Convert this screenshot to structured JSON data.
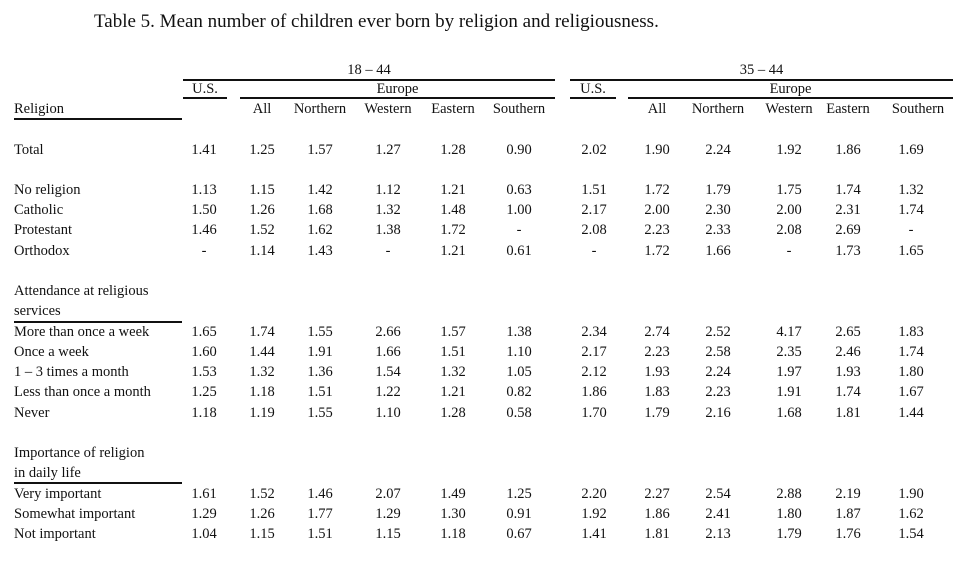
{
  "title": "Table 5. Mean number of children ever born by religion and religiousness.",
  "groups": {
    "left": {
      "age": "18 – 44",
      "us": "U.S.",
      "europe": "Europe"
    },
    "right": {
      "age": "35 – 44",
      "us": "U.S.",
      "europe": "Europe"
    }
  },
  "row_header": "Religion",
  "subheaders": [
    "All",
    "Northern",
    "Western",
    "Eastern",
    "Southern"
  ],
  "rows": [
    {
      "label": "Total",
      "values": [
        "1.41",
        "1.25",
        "1.57",
        "1.27",
        "1.28",
        "0.90",
        "2.02",
        "1.90",
        "2.24",
        "1.92",
        "1.86",
        "1.69"
      ]
    },
    {
      "label": "No religion",
      "values": [
        "1.13",
        "1.15",
        "1.42",
        "1.12",
        "1.21",
        "0.63",
        "1.51",
        "1.72",
        "1.79",
        "1.75",
        "1.74",
        "1.32"
      ]
    },
    {
      "label": "Catholic",
      "values": [
        "1.50",
        "1.26",
        "1.68",
        "1.32",
        "1.48",
        "1.00",
        "2.17",
        "2.00",
        "2.30",
        "2.00",
        "2.31",
        "1.74"
      ]
    },
    {
      "label": "Protestant",
      "values": [
        "1.46",
        "1.52",
        "1.62",
        "1.38",
        "1.72",
        "-",
        "2.08",
        "2.23",
        "2.33",
        "2.08",
        "2.69",
        "-"
      ]
    },
    {
      "label": "Orthodox",
      "values": [
        "-",
        "1.14",
        "1.43",
        "-",
        "1.21",
        "0.61",
        "-",
        "1.72",
        "1.66",
        "-",
        "1.73",
        "1.65"
      ]
    },
    {
      "label": "More than once a week",
      "values": [
        "1.65",
        "1.74",
        "1.55",
        "2.66",
        "1.57",
        "1.38",
        "2.34",
        "2.74",
        "2.52",
        "4.17",
        "2.65",
        "1.83"
      ]
    },
    {
      "label": "Once a week",
      "values": [
        "1.60",
        "1.44",
        "1.91",
        "1.66",
        "1.51",
        "1.10",
        "2.17",
        "2.23",
        "2.58",
        "2.35",
        "2.46",
        "1.74"
      ]
    },
    {
      "label": "1 – 3 times a month",
      "values": [
        "1.53",
        "1.32",
        "1.36",
        "1.54",
        "1.32",
        "1.05",
        "2.12",
        "1.93",
        "2.24",
        "1.97",
        "1.93",
        "1.80"
      ]
    },
    {
      "label": "Less than once a month",
      "values": [
        "1.25",
        "1.18",
        "1.51",
        "1.22",
        "1.21",
        "0.82",
        "1.86",
        "1.83",
        "2.23",
        "1.91",
        "1.74",
        "1.67"
      ]
    },
    {
      "label": "Never",
      "values": [
        "1.18",
        "1.19",
        "1.55",
        "1.10",
        "1.28",
        "0.58",
        "1.70",
        "1.79",
        "2.16",
        "1.68",
        "1.81",
        "1.44"
      ]
    },
    {
      "label": "Very important",
      "values": [
        "1.61",
        "1.52",
        "1.46",
        "2.07",
        "1.49",
        "1.25",
        "2.20",
        "2.27",
        "2.54",
        "2.88",
        "2.19",
        "1.90"
      ]
    },
    {
      "label": "Somewhat important",
      "values": [
        "1.29",
        "1.26",
        "1.77",
        "1.29",
        "1.30",
        "0.91",
        "1.92",
        "1.86",
        "2.41",
        "1.80",
        "1.87",
        "1.62"
      ]
    },
    {
      "label": "Not important",
      "values": [
        "1.04",
        "1.15",
        "1.51",
        "1.15",
        "1.18",
        "0.67",
        "1.41",
        "1.81",
        "2.13",
        "1.79",
        "1.76",
        "1.54"
      ]
    }
  ],
  "sections": [
    {
      "line1": "Attendance at  religious",
      "line2": "services"
    },
    {
      "line1": "Importance of    religion",
      "line2": "in daily life"
    }
  ]
}
